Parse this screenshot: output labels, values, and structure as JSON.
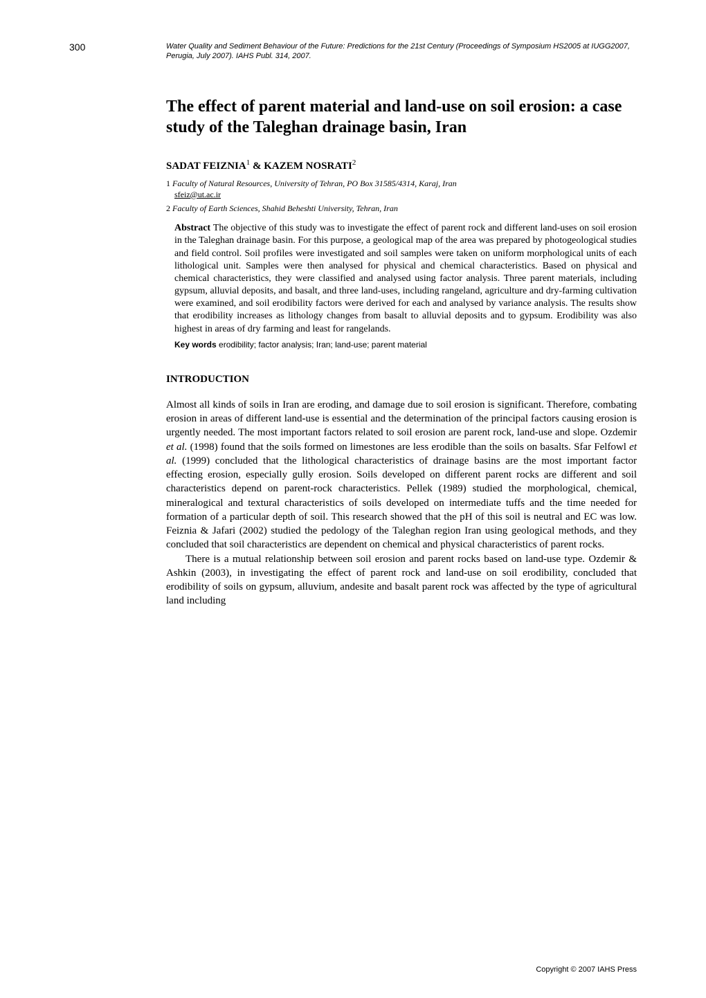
{
  "page_number": "300",
  "header_citation": "Water Quality and Sediment Behaviour of the Future: Predictions for the 21st Century (Proceedings of Symposium HS2005 at IUGG2007, Perugia, July 2007). IAHS Publ. 314, 2007.",
  "title": "The effect of parent material and land-use on soil erosion: a case study of the Taleghan drainage basin, Iran",
  "authors": {
    "author1_name": "SADAT FEIZNIA",
    "author1_sup": "1",
    "amp": " & ",
    "author2_name": "KAZEM NOSRATI",
    "author2_sup": "2"
  },
  "affiliations": {
    "a1_num": "1 ",
    "a1_text": "Faculty of Natural Resources, University of Tehran, PO Box 31585/4314, Karaj, Iran",
    "a1_email": "sfeiz@ut.ac.ir",
    "a2_num": "2 ",
    "a2_text": "Faculty of Earth Sciences, Shahid Beheshti University, Tehran, Iran"
  },
  "abstract": {
    "label": "Abstract ",
    "text": "The objective of this study was to investigate the effect of parent rock and different land-uses on soil erosion in the Taleghan drainage basin. For this purpose, a geological map of the area was prepared by photogeological studies and field control. Soil profiles were investigated and soil samples were taken on uniform morphological units of each lithological unit. Samples were then analysed for physical and chemical characteristics. Based on physical and chemical characteristics, they were classified and analysed using factor analysis. Three parent materials, including gypsum, alluvial deposits, and basalt, and three land-uses, including rangeland, agriculture and dry-farming cultivation were examined, and soil erodibility factors were derived for each and analysed by variance analysis. The results show that erodibility increases as lithology changes from basalt to alluvial deposits and to gypsum. Erodibility was also highest in areas of dry farming and least for rangelands."
  },
  "keywords": {
    "label": "Key words ",
    "text": "erodibility; factor analysis; Iran; land-use; parent material"
  },
  "section_heading": "INTRODUCTION",
  "body": {
    "p1_a": "Almost all kinds of soils in Iran are eroding, and damage due to soil erosion is significant. Therefore, combating erosion in areas of different land-use is essential and the determination of the principal factors causing erosion is urgently needed. The most important factors related to soil erosion are parent rock, land-use and slope. Ozdemir ",
    "p1_b_italic": "et al.",
    "p1_c": " (1998) found that the soils formed on limestones are less erodible than the soils on basalts. Sfar Felfowl ",
    "p1_d_italic": "et al.",
    "p1_e": " (1999) concluded that the lithological characteristics of drainage basins are the most important factor effecting erosion, especially gully erosion. Soils developed on different parent rocks are different and soil characteristics depend on parent-rock characteristics. Pellek (1989) studied the morphological, chemical, mineralogical and textural characteristics of soils developed on intermediate tuffs and the time needed for formation of a particular depth of soil. This research showed that the pH of this soil is neutral and EC was low. Feiznia & Jafari (2002) studied the pedology of the Taleghan region Iran using geological methods, and they concluded that soil characteristics are dependent on chemical and physical characteristics of parent rocks.",
    "p2": "There is a mutual relationship between soil erosion and parent rocks based on land-use type. Ozdemir & Ashkin (2003), in investigating the effect of parent rock and land-use on soil erodibility, concluded that erodibility of soils on gypsum, alluvium, andesite and basalt parent rock was affected by the type of agricultural land including"
  },
  "copyright": "Copyright © 2007 IAHS Press"
}
